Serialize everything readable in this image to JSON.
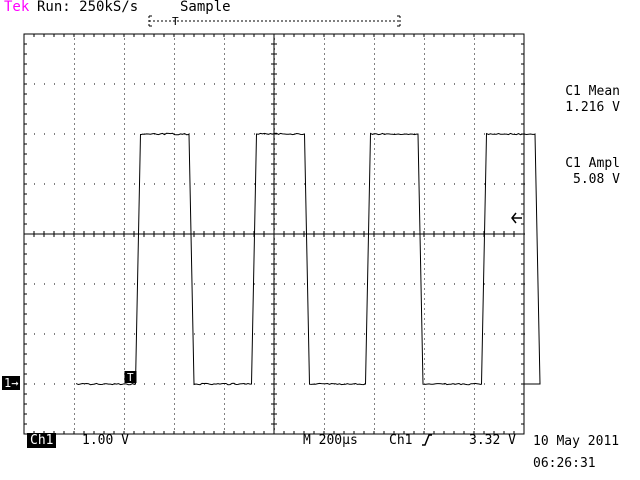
{
  "header": {
    "brand": "Tek",
    "run_status": "Run: 250kS/s",
    "acq_mode": "Sample"
  },
  "measurements": [
    {
      "label": "C1 Mean",
      "value": "1.216 V"
    },
    {
      "label": "C1 Ampl",
      "value": "5.08 V"
    }
  ],
  "footer": {
    "channel": "Ch1",
    "ch1_scale": "1.00 V",
    "timebase": "M 200µs",
    "trigger_source": "Ch1",
    "trigger_level": "3.32 V",
    "date": "10 May 2011",
    "time": "06:26:31"
  },
  "markers": {
    "channel_marker": "1→",
    "trigger_marker": "T"
  },
  "colors": {
    "brand": "#ff00ff",
    "trace": "#000000",
    "graticule": "#000000"
  },
  "waveform": {
    "low_level_div": -3,
    "high_level_div": 2,
    "high_intervals_div": [
      [
        2.23,
        3.4
      ],
      [
        4.55,
        5.71
      ],
      [
        6.83,
        7.98
      ],
      [
        9.15,
        10.32
      ]
    ],
    "edge_width_div": 0.1,
    "trigger_time_div": 2.13
  }
}
